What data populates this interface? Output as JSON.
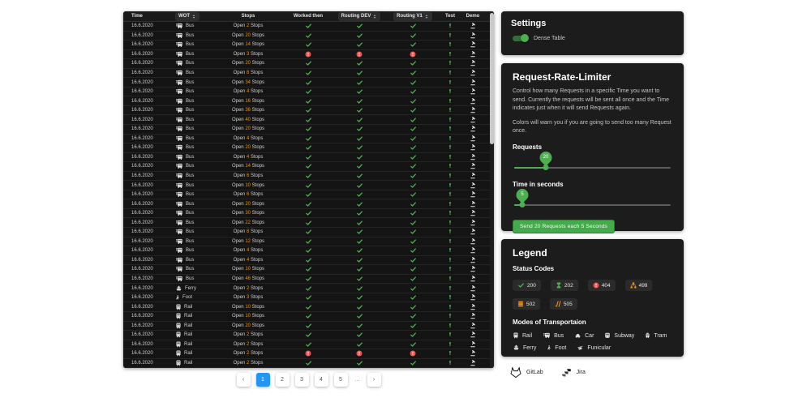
{
  "colors": {
    "accent_green": "#4caf50",
    "warn_orange": "#ff9800",
    "error_red": "#ef5350",
    "stops_orange": "#e8930c",
    "active_page_blue": "#2196f3",
    "vial_green": "#5fc463"
  },
  "table": {
    "columns": [
      {
        "label": "Time",
        "sortable": false
      },
      {
        "label": "WOT",
        "sortable": true
      },
      {
        "label": "Stops",
        "sortable": false
      },
      {
        "label": "Worked then",
        "sortable": false
      },
      {
        "label": "Routing DEV",
        "sortable": true
      },
      {
        "label": "Routing V1",
        "sortable": true
      },
      {
        "label": "Test",
        "sortable": false
      },
      {
        "label": "Demo",
        "sortable": false
      }
    ],
    "open_label": "Open",
    "stops_label": "Stops",
    "rows": [
      {
        "time": "16.6.2020",
        "mode": "Bus",
        "stops": 2,
        "status": [
          "ok",
          "ok",
          "ok"
        ]
      },
      {
        "time": "16.6.2020",
        "mode": "Bus",
        "stops": 20,
        "status": [
          "ok",
          "ok",
          "ok"
        ]
      },
      {
        "time": "16.6.2020",
        "mode": "Bus",
        "stops": 14,
        "status": [
          "ok",
          "ok",
          "ok"
        ]
      },
      {
        "time": "16.6.2020",
        "mode": "Bus",
        "stops": 3,
        "status": [
          "err",
          "err",
          "err"
        ]
      },
      {
        "time": "16.6.2020",
        "mode": "Bus",
        "stops": 20,
        "status": [
          "ok",
          "ok",
          "ok"
        ]
      },
      {
        "time": "16.6.2020",
        "mode": "Bus",
        "stops": 8,
        "status": [
          "ok",
          "ok",
          "ok"
        ]
      },
      {
        "time": "16.6.2020",
        "mode": "Bus",
        "stops": 34,
        "status": [
          "ok",
          "ok",
          "ok"
        ]
      },
      {
        "time": "16.6.2020",
        "mode": "Bus",
        "stops": 4,
        "status": [
          "ok",
          "ok",
          "ok"
        ]
      },
      {
        "time": "16.6.2020",
        "mode": "Bus",
        "stops": 16,
        "status": [
          "ok",
          "ok",
          "ok"
        ]
      },
      {
        "time": "16.6.2020",
        "mode": "Bus",
        "stops": 36,
        "status": [
          "ok",
          "ok",
          "ok"
        ]
      },
      {
        "time": "16.6.2020",
        "mode": "Bus",
        "stops": 40,
        "status": [
          "ok",
          "ok",
          "ok"
        ]
      },
      {
        "time": "16.6.2020",
        "mode": "Bus",
        "stops": 20,
        "status": [
          "ok",
          "ok",
          "ok"
        ]
      },
      {
        "time": "16.6.2020",
        "mode": "Bus",
        "stops": 4,
        "status": [
          "ok",
          "ok",
          "ok"
        ]
      },
      {
        "time": "16.6.2020",
        "mode": "Bus",
        "stops": 20,
        "status": [
          "ok",
          "ok",
          "ok"
        ]
      },
      {
        "time": "16.6.2020",
        "mode": "Bus",
        "stops": 4,
        "status": [
          "ok",
          "ok",
          "ok"
        ]
      },
      {
        "time": "16.6.2020",
        "mode": "Bus",
        "stops": 14,
        "status": [
          "ok",
          "ok",
          "ok"
        ]
      },
      {
        "time": "16.6.2020",
        "mode": "Bus",
        "stops": 6,
        "status": [
          "ok",
          "ok",
          "ok"
        ]
      },
      {
        "time": "16.6.2020",
        "mode": "Bus",
        "stops": 10,
        "status": [
          "ok",
          "ok",
          "ok"
        ]
      },
      {
        "time": "16.6.2020",
        "mode": "Bus",
        "stops": 6,
        "status": [
          "ok",
          "ok",
          "ok"
        ]
      },
      {
        "time": "16.6.2020",
        "mode": "Bus",
        "stops": 20,
        "status": [
          "ok",
          "ok",
          "ok"
        ]
      },
      {
        "time": "16.6.2020",
        "mode": "Bus",
        "stops": 30,
        "status": [
          "ok",
          "ok",
          "ok"
        ]
      },
      {
        "time": "16.6.2020",
        "mode": "Bus",
        "stops": 22,
        "status": [
          "ok",
          "ok",
          "ok"
        ]
      },
      {
        "time": "16.6.2020",
        "mode": "Bus",
        "stops": 8,
        "status": [
          "ok",
          "ok",
          "ok"
        ]
      },
      {
        "time": "16.6.2020",
        "mode": "Bus",
        "stops": 12,
        "status": [
          "ok",
          "ok",
          "ok"
        ]
      },
      {
        "time": "16.6.2020",
        "mode": "Bus",
        "stops": 4,
        "status": [
          "ok",
          "ok",
          "ok"
        ]
      },
      {
        "time": "16.6.2020",
        "mode": "Bus",
        "stops": 4,
        "status": [
          "ok",
          "ok",
          "ok"
        ]
      },
      {
        "time": "16.6.2020",
        "mode": "Bus",
        "stops": 10,
        "status": [
          "ok",
          "ok",
          "ok"
        ]
      },
      {
        "time": "16.6.2020",
        "mode": "Bus",
        "stops": 46,
        "status": [
          "ok",
          "ok",
          "ok"
        ]
      },
      {
        "time": "16.6.2020",
        "mode": "Ferry",
        "stops": 2,
        "status": [
          "ok",
          "ok",
          "ok"
        ]
      },
      {
        "time": "16.6.2020",
        "mode": "Foot",
        "stops": 3,
        "status": [
          "ok",
          "ok",
          "ok"
        ]
      },
      {
        "time": "16.6.2020",
        "mode": "Rail",
        "stops": 10,
        "status": [
          "ok",
          "ok",
          "ok"
        ]
      },
      {
        "time": "16.6.2020",
        "mode": "Rail",
        "stops": 10,
        "status": [
          "ok",
          "ok",
          "ok"
        ]
      },
      {
        "time": "16.6.2020",
        "mode": "Rail",
        "stops": 20,
        "status": [
          "ok",
          "ok",
          "ok"
        ]
      },
      {
        "time": "16.6.2020",
        "mode": "Rail",
        "stops": 2,
        "status": [
          "ok",
          "ok",
          "ok"
        ]
      },
      {
        "time": "16.6.2020",
        "mode": "Rail",
        "stops": 2,
        "status": [
          "ok",
          "ok",
          "ok"
        ]
      },
      {
        "time": "16.6.2020",
        "mode": "Rail",
        "stops": 2,
        "status": [
          "err",
          "err",
          "err"
        ]
      },
      {
        "time": "16.6.2020",
        "mode": "Rail",
        "stops": 2,
        "status": [
          "ok",
          "ok",
          "ok"
        ]
      },
      {
        "time": "16.6.2020",
        "mode": "Rail",
        "stops": 2,
        "status": [
          "ok",
          "ok",
          "ok"
        ]
      }
    ]
  },
  "pagination": {
    "prev": "‹",
    "pages": [
      "1",
      "2",
      "3",
      "4",
      "5"
    ],
    "active": "1",
    "ellipsis": "…",
    "next": "›"
  },
  "settings": {
    "title": "Settings",
    "toggle_label": "Dense Table",
    "toggle_on": true
  },
  "rate_limiter": {
    "title": "Request-Rate-Limiter",
    "description": "Control how many Requests in a specific Time you want to send. Currently the requests will be sent all once and the Time indicates just when it will send Requests again.",
    "warning": "Colors will warn you if you are going to send too many Request once.",
    "requests_label": "Requests",
    "requests_value": 20,
    "time_label": "Time in seconds",
    "time_value": 5,
    "button_label": "Send 20 Requests each 5 Seconds"
  },
  "legend": {
    "title": "Legend",
    "status_title": "Status Codes",
    "status_codes": [
      {
        "code": "200",
        "icon": "check-icon",
        "color": "#4caf50"
      },
      {
        "code": "202",
        "icon": "hourglass-icon",
        "color": "#4caf50"
      },
      {
        "code": "404",
        "icon": "error-icon",
        "color": "#ef5350"
      },
      {
        "code": "499",
        "icon": "sitemap-icon",
        "color": "#ff9800"
      },
      {
        "code": "502",
        "icon": "server-icon",
        "color": "#ff9800"
      },
      {
        "code": "505",
        "icon": "slashes-icon",
        "color": "#ff9800"
      }
    ],
    "modes_title": "Modes of Transportaion",
    "modes": [
      {
        "label": "Rail",
        "icon": "rail-icon"
      },
      {
        "label": "Bus",
        "icon": "bus-icon"
      },
      {
        "label": "Car",
        "icon": "car-icon"
      },
      {
        "label": "Subway",
        "icon": "subway-icon"
      },
      {
        "label": "Tram",
        "icon": "tram-icon"
      },
      {
        "label": "Ferry",
        "icon": "ferry-icon"
      },
      {
        "label": "Foot",
        "icon": "foot-icon"
      },
      {
        "label": "Funicular",
        "icon": "funicular-icon"
      }
    ]
  },
  "links": [
    {
      "label": "GitLab",
      "icon": "gitlab-icon"
    },
    {
      "label": "Jira",
      "icon": "jira-icon"
    }
  ]
}
